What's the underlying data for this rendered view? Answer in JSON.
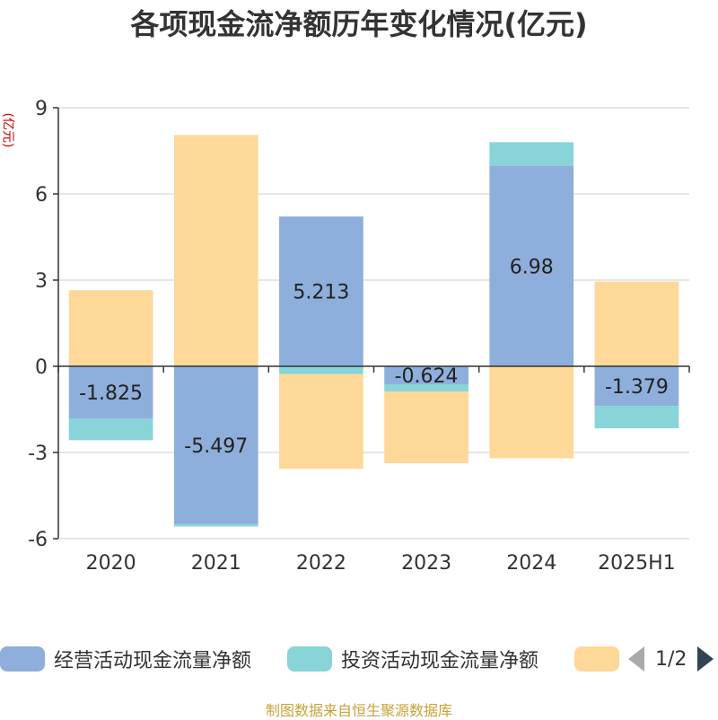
{
  "title": "各项现金流净额历年变化情况(亿元)",
  "unit_label": "(亿元)",
  "source": "制图数据来自恒生聚源数据库",
  "legend": {
    "items": [
      {
        "label": "经营活动现金流量净额",
        "color": "#8eaedb"
      },
      {
        "label": "投资活动现金流量净额",
        "color": "#88d4d8"
      },
      {
        "label": "",
        "color": "#fdd899"
      }
    ],
    "page_text": "1/2"
  },
  "chart_data": {
    "type": "bar",
    "stacked": true,
    "categories": [
      "2020",
      "2021",
      "2022",
      "2023",
      "2024",
      "2025H1"
    ],
    "ylim": [
      -6,
      9
    ],
    "yticks": [
      -6,
      -3,
      0,
      3,
      6,
      9
    ],
    "grid": true,
    "legend_position": "bottom",
    "series": [
      {
        "name": "经营活动现金流量净额",
        "color": "#8eaedb",
        "values": [
          -1.825,
          -5.497,
          5.213,
          -0.624,
          6.98,
          -1.379
        ],
        "labels": [
          "-1.825",
          "-5.497",
          "5.213",
          "-0.624",
          "6.98",
          "-1.379"
        ]
      },
      {
        "name": "投资活动现金流量净额",
        "color": "#88d4d8",
        "values": [
          -0.75,
          -0.08,
          -0.27,
          -0.25,
          0.82,
          -0.78
        ]
      },
      {
        "name": "",
        "color": "#fdd899",
        "values": [
          2.65,
          8.05,
          -3.3,
          -2.5,
          -3.2,
          2.95
        ]
      }
    ]
  }
}
